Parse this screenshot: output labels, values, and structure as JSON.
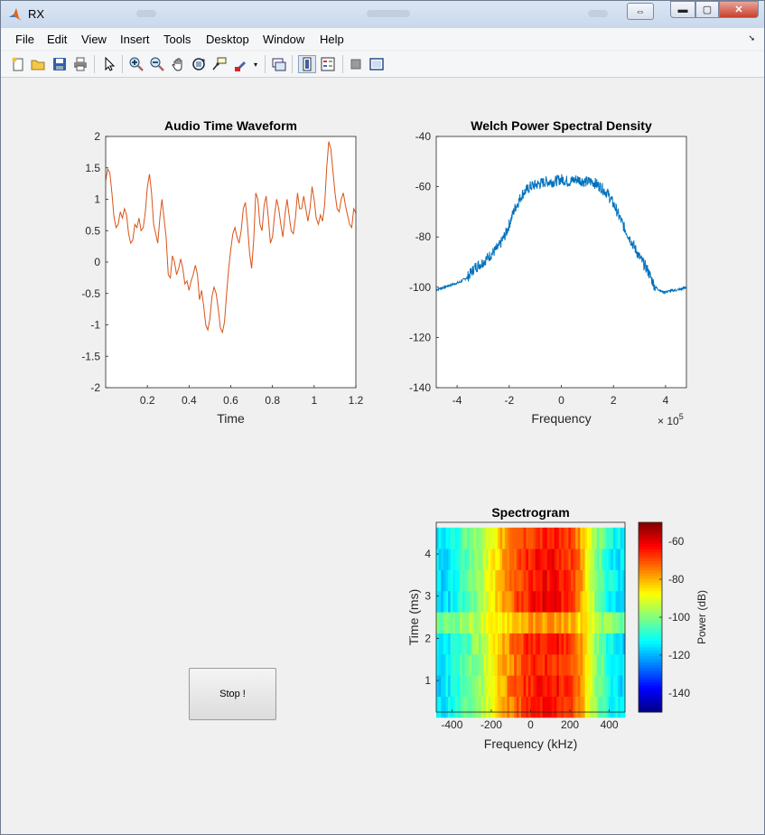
{
  "window": {
    "title": "RX"
  },
  "menubar": {
    "items": [
      "File",
      "Edit",
      "View",
      "Insert",
      "Tools",
      "Desktop",
      "Window",
      "Help"
    ]
  },
  "toolbar": {
    "icons": [
      "new-figure-icon",
      "open-file-icon",
      "save-icon",
      "print-icon",
      "pointer-icon",
      "zoom-in-icon",
      "zoom-out-icon",
      "pan-icon",
      "rotate-3d-icon",
      "data-cursor-icon",
      "brush-icon",
      "brush-dropdown-icon",
      "link-plot-icon",
      "colorbar-icon",
      "legend-icon",
      "hide-plot-tools-icon",
      "show-plot-tools-icon"
    ]
  },
  "stop_button": {
    "label": "Stop !"
  },
  "chart_data": [
    {
      "type": "line",
      "title": "Audio Time Waveform",
      "xlabel": "Time",
      "ylabel": "",
      "xlim": [
        0,
        1.2
      ],
      "ylim": [
        -2,
        2
      ],
      "xticks": [
        "0.2",
        "0.4",
        "0.6",
        "0.8",
        "1",
        "1.2"
      ],
      "yticks": [
        "-2",
        "-1.5",
        "-1",
        "-0.5",
        "0",
        "0.5",
        "1",
        "1.5",
        "2"
      ],
      "grid": false,
      "color": "#d95319",
      "x": [
        0,
        0.01,
        0.02,
        0.03,
        0.04,
        0.05,
        0.06,
        0.07,
        0.08,
        0.09,
        0.1,
        0.11,
        0.12,
        0.13,
        0.14,
        0.15,
        0.16,
        0.17,
        0.18,
        0.19,
        0.2,
        0.21,
        0.22,
        0.23,
        0.24,
        0.25,
        0.26,
        0.27,
        0.28,
        0.29,
        0.3,
        0.31,
        0.32,
        0.33,
        0.34,
        0.35,
        0.36,
        0.37,
        0.38,
        0.39,
        0.4,
        0.41,
        0.42,
        0.43,
        0.44,
        0.45,
        0.46,
        0.47,
        0.48,
        0.49,
        0.5,
        0.51,
        0.52,
        0.53,
        0.54,
        0.55,
        0.56,
        0.57,
        0.58,
        0.59,
        0.6,
        0.61,
        0.62,
        0.63,
        0.64,
        0.65,
        0.66,
        0.67,
        0.68,
        0.69,
        0.7,
        0.71,
        0.72,
        0.73,
        0.74,
        0.75,
        0.76,
        0.77,
        0.78,
        0.79,
        0.8,
        0.81,
        0.82,
        0.83,
        0.84,
        0.85,
        0.86,
        0.87,
        0.88,
        0.89,
        0.9,
        0.91,
        0.92,
        0.93,
        0.94,
        0.95,
        0.96,
        0.97,
        0.98,
        0.99,
        1,
        1.01,
        1.02,
        1.03,
        1.04,
        1.05,
        1.06,
        1.07,
        1.08,
        1.09,
        1.1,
        1.11,
        1.12,
        1.13,
        1.14,
        1.15,
        1.16,
        1.17,
        1.18,
        1.19,
        1.2
      ],
      "y": [
        1.3,
        1.48,
        1.42,
        1.1,
        0.72,
        0.55,
        0.6,
        0.8,
        0.7,
        0.85,
        0.75,
        0.45,
        0.3,
        0.35,
        0.6,
        0.55,
        0.7,
        0.5,
        0.55,
        0.8,
        1.2,
        1.4,
        1.1,
        0.6,
        0.45,
        0.3,
        0.7,
        1.0,
        0.7,
        0.4,
        -0.2,
        -0.25,
        0.1,
        0.0,
        -0.2,
        -0.1,
        0.05,
        -0.1,
        -0.35,
        -0.3,
        -0.45,
        -0.3,
        -0.2,
        -0.05,
        -0.2,
        -0.6,
        -0.45,
        -0.7,
        -1.0,
        -1.08,
        -0.9,
        -0.55,
        -0.4,
        -0.5,
        -0.75,
        -1.05,
        -1.12,
        -0.95,
        -0.5,
        -0.1,
        0.2,
        0.45,
        0.55,
        0.4,
        0.3,
        0.5,
        0.85,
        0.95,
        0.6,
        0.15,
        -0.1,
        0.35,
        1.1,
        1.0,
        0.6,
        0.5,
        0.9,
        1.05,
        0.7,
        0.3,
        0.4,
        0.75,
        1.0,
        0.85,
        0.6,
        0.4,
        0.75,
        1.0,
        0.75,
        0.5,
        0.45,
        0.7,
        1.1,
        0.85,
        0.85,
        1.05,
        0.85,
        0.65,
        0.85,
        1.2,
        1.0,
        0.7,
        0.6,
        0.75,
        0.65,
        0.9,
        1.5,
        1.92,
        1.8,
        1.45,
        1.1,
        0.85,
        0.8,
        1.0,
        1.1,
        0.9,
        0.75,
        0.6,
        0.55,
        0.85,
        0.78
      ]
    },
    {
      "type": "line",
      "title": "Welch Power Spectral Density",
      "xlabel": "Frequency",
      "ylabel": "",
      "axis_exponent": "×10^5",
      "exponent_base": "× 10",
      "exponent_power": "5",
      "xlim": [
        -4.8,
        4.8
      ],
      "ylim": [
        -140,
        -40
      ],
      "xticks": [
        "-4",
        "-2",
        "0",
        "2",
        "4"
      ],
      "yticks": [
        "-140",
        "-120",
        "-100",
        "-80",
        "-60",
        "-40"
      ],
      "grid": false,
      "color": "#0072bd",
      "x": [
        -4.8,
        -4.5,
        -4.2,
        -3.9,
        -3.6,
        -3.3,
        -3.0,
        -2.7,
        -2.4,
        -2.1,
        -1.8,
        -1.5,
        -1.2,
        -0.9,
        -0.6,
        -0.3,
        0,
        0.3,
        0.6,
        0.9,
        1.2,
        1.5,
        1.8,
        2.1,
        2.4,
        2.7,
        3.0,
        3.3,
        3.6,
        3.9,
        4.2,
        4.5,
        4.8
      ],
      "y": [
        -101,
        -100,
        -99,
        -98,
        -96,
        -92,
        -90,
        -87,
        -84,
        -78,
        -69,
        -63,
        -60,
        -59,
        -58,
        -58,
        -57,
        -58,
        -57,
        -58,
        -58,
        -60,
        -63,
        -69,
        -76,
        -82,
        -88,
        -93,
        -100,
        -102,
        -101.5,
        -101,
        -100
      ]
    },
    {
      "type": "heatmap",
      "title": "Spectrogram",
      "xlabel": "Frequency (kHz)",
      "ylabel": "Time (ms)",
      "xlim": [
        -480,
        480
      ],
      "ylim": [
        0.25,
        4.75
      ],
      "xticks": [
        "-400",
        "-200",
        "0",
        "200",
        "400"
      ],
      "yticks": [
        "1",
        "2",
        "3",
        "4"
      ],
      "time_rows_ms": [
        0.375,
        0.875,
        1.375,
        1.875,
        2.375,
        2.875,
        3.375,
        3.875,
        4.375
      ],
      "row_contrast": [
        0.9,
        0.95,
        0.85,
        0.95,
        0.45,
        1.0,
        0.95,
        0.95,
        0.85
      ],
      "freq_bins_khz": [
        -450,
        -400,
        -350,
        -300,
        -250,
        -200,
        -150,
        -100,
        -50,
        0,
        50,
        100,
        150,
        200,
        250,
        300,
        350,
        400,
        450
      ],
      "spectrum_db": [
        -118,
        -113,
        -108,
        -103,
        -97,
        -88,
        -80,
        -73,
        -68,
        -64,
        -62,
        -61,
        -63,
        -66,
        -75,
        -90,
        -103,
        -112,
        -117
      ],
      "colorbar": {
        "label": "Power (dB)",
        "range": [
          -150,
          -50
        ],
        "ticks": [
          "-60",
          "-80",
          "-100",
          "-120",
          "-140"
        ]
      }
    }
  ]
}
